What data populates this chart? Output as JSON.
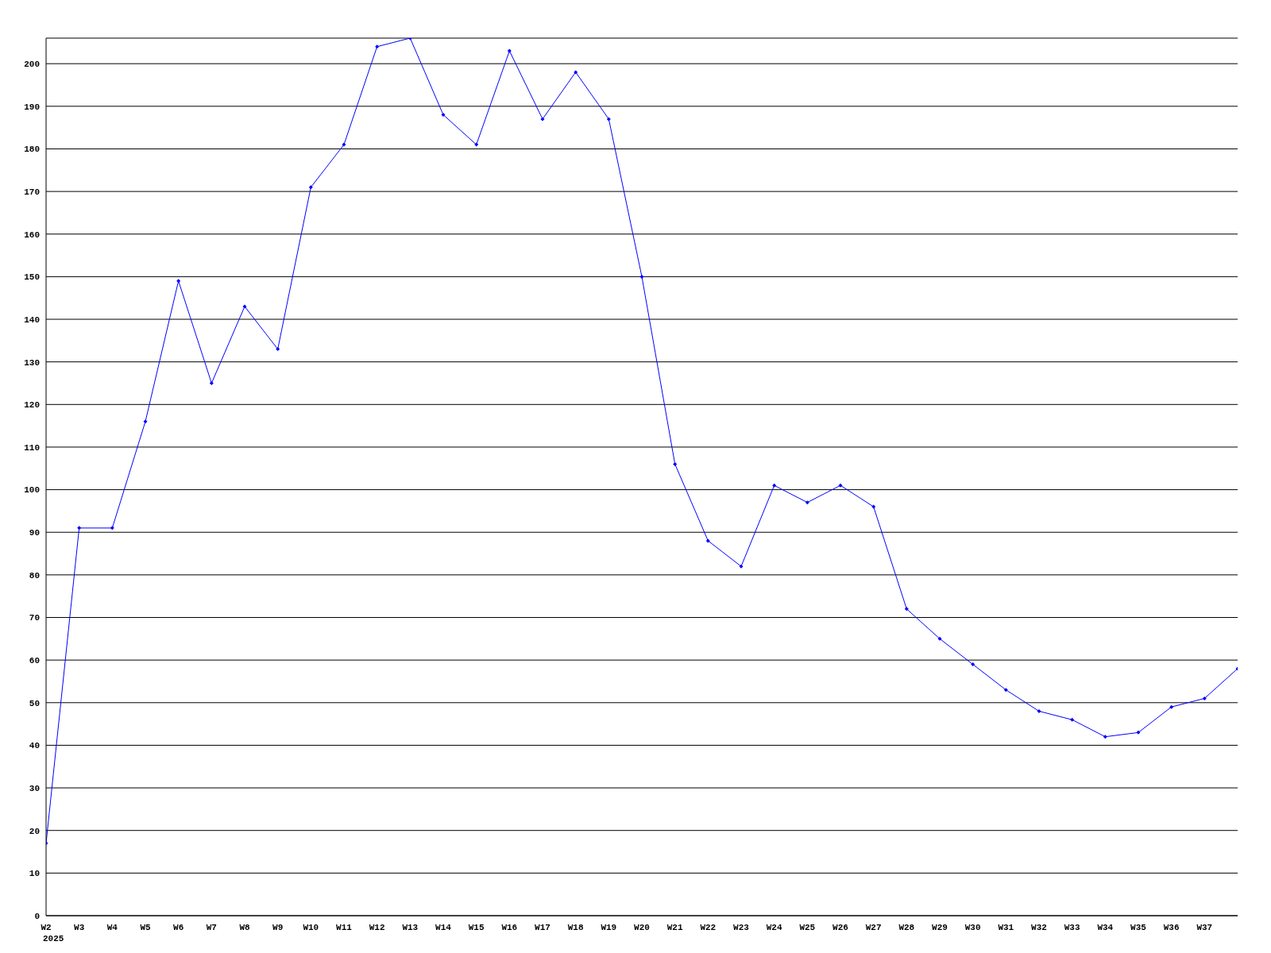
{
  "chart_data": {
    "type": "line",
    "categories": [
      "W2\n2025",
      "W3",
      "W4",
      "W5",
      "W6",
      "W7",
      "W8",
      "W9",
      "W10",
      "W11",
      "W12",
      "W13",
      "W14",
      "W15",
      "W16",
      "W17",
      "W18",
      "W19",
      "W20",
      "W21",
      "W22",
      "W23",
      "W24",
      "W25",
      "W26",
      "W27",
      "W28",
      "W29",
      "W30",
      "W31",
      "W32",
      "W33",
      "W34",
      "W35",
      "W36",
      "W37",
      null
    ],
    "series": [
      {
        "color": "#0000ff",
        "values": [
          17,
          91,
          91,
          116,
          149,
          125,
          143,
          133,
          171,
          181,
          204,
          206,
          188,
          181,
          203,
          187,
          198,
          187,
          150,
          106,
          88,
          82,
          101,
          97,
          101,
          96,
          72,
          65,
          59,
          53,
          48,
          46,
          42,
          43,
          49,
          51,
          58
        ]
      }
    ],
    "ylim": [
      0,
      206
    ],
    "yticks": [
      0,
      10,
      20,
      30,
      40,
      50,
      60,
      70,
      80,
      90,
      100,
      110,
      120,
      130,
      140,
      150,
      160,
      170,
      180,
      190,
      200
    ],
    "grid": "y",
    "legend": false,
    "marker": "diamond",
    "line_style": "solid"
  }
}
